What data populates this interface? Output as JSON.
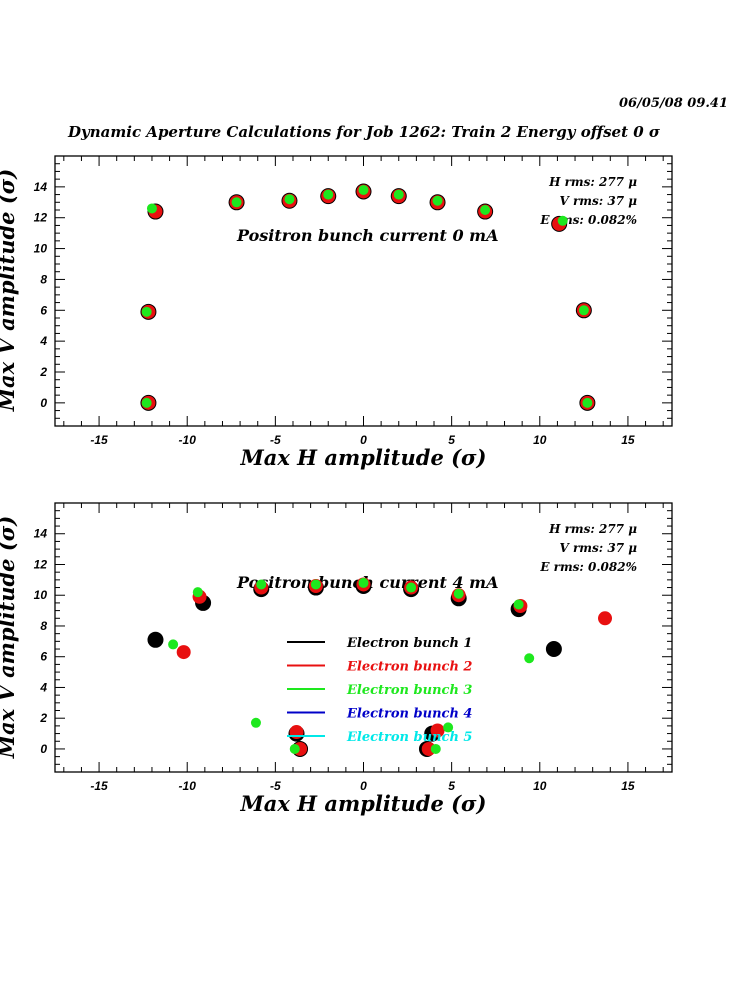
{
  "header": {
    "datetime": "06/05/08   09.41",
    "title": "Dynamic Aperture Calculations for Job 1262:  Train 2   Energy offset  0 σ"
  },
  "colors": {
    "black": "#000000",
    "red": "#e81010",
    "green": "#1ee81e",
    "blue": "#0000c8",
    "cyan": "#00e8e8"
  },
  "chart_data": [
    {
      "type": "scatter",
      "xlabel": "Max H amplitude (σ)",
      "ylabel": "Max V amplitude (σ)",
      "xlim": [
        -17.5,
        17.5
      ],
      "ylim": [
        -1.5,
        16
      ],
      "xticks": [
        -15,
        -10,
        -5,
        0,
        5,
        10,
        15
      ],
      "yticks": [
        0,
        2,
        4,
        6,
        8,
        10,
        12,
        14
      ],
      "annotation": "Positron bunch current  0 mA",
      "rms": {
        "h": "H rms: 277 μ",
        "v": "V rms: 37 μ",
        "e": "E rms: 0.082%"
      },
      "series": [
        {
          "color": "black",
          "radius": 8,
          "points": [
            [
              -12.2,
              0
            ],
            [
              -12.2,
              5.9
            ],
            [
              -11.8,
              12.4
            ],
            [
              -7.2,
              13.0
            ],
            [
              -4.2,
              13.1
            ],
            [
              -2.0,
              13.4
            ],
            [
              0,
              13.7
            ],
            [
              2.0,
              13.4
            ],
            [
              4.2,
              13.0
            ],
            [
              6.9,
              12.4
            ],
            [
              11.1,
              11.6
            ],
            [
              12.5,
              6.0
            ],
            [
              12.7,
              0
            ]
          ]
        },
        {
          "color": "red",
          "radius": 7,
          "points": [
            [
              -12.2,
              0
            ],
            [
              -12.2,
              5.9
            ],
            [
              -11.8,
              12.4
            ],
            [
              -7.2,
              13.0
            ],
            [
              -4.2,
              13.1
            ],
            [
              -2.0,
              13.4
            ],
            [
              0,
              13.7
            ],
            [
              2.0,
              13.4
            ],
            [
              4.2,
              13.0
            ],
            [
              6.9,
              12.4
            ],
            [
              11.1,
              11.6
            ],
            [
              12.5,
              6.0
            ],
            [
              12.7,
              0
            ]
          ]
        },
        {
          "color": "green",
          "radius": 5,
          "points": [
            [
              -12.3,
              0
            ],
            [
              -12.3,
              5.9
            ],
            [
              -12.0,
              12.6
            ],
            [
              -7.2,
              13.0
            ],
            [
              -4.2,
              13.2
            ],
            [
              -2.0,
              13.5
            ],
            [
              0,
              13.8
            ],
            [
              2.0,
              13.5
            ],
            [
              4.2,
              13.1
            ],
            [
              6.9,
              12.5
            ],
            [
              11.3,
              11.8
            ],
            [
              12.5,
              6.0
            ],
            [
              12.7,
              0
            ]
          ]
        }
      ]
    },
    {
      "type": "scatter",
      "xlabel": "Max H amplitude (σ)",
      "ylabel": "Max V amplitude (σ)",
      "xlim": [
        -17.5,
        17.5
      ],
      "ylim": [
        -1.5,
        16
      ],
      "xticks": [
        -15,
        -10,
        -5,
        0,
        5,
        10,
        15
      ],
      "yticks": [
        0,
        2,
        4,
        6,
        8,
        10,
        12,
        14
      ],
      "annotation": "Positron bunch current  4 mA",
      "rms": {
        "h": "H rms: 277 μ",
        "v": "V rms: 37 μ",
        "e": "E rms: 0.082%"
      },
      "legend": [
        {
          "label": "Electron bunch 1",
          "color": "black"
        },
        {
          "label": "Electron bunch 2",
          "color": "red"
        },
        {
          "label": "Electron bunch 3",
          "color": "green"
        },
        {
          "label": "Electron bunch 4",
          "color": "blue"
        },
        {
          "label": "Electron bunch 5",
          "color": "cyan"
        }
      ],
      "series": [
        {
          "name": "Electron bunch 1",
          "color": "black",
          "radius": 8,
          "points": [
            [
              -11.8,
              7.1
            ],
            [
              -9.1,
              9.5
            ],
            [
              -5.8,
              10.4
            ],
            [
              -2.7,
              10.5
            ],
            [
              0,
              10.6
            ],
            [
              2.7,
              10.4
            ],
            [
              5.4,
              9.8
            ],
            [
              8.8,
              9.1
            ],
            [
              10.8,
              6.5
            ],
            [
              -3.6,
              0
            ],
            [
              -3.8,
              1.0
            ],
            [
              3.6,
              0
            ],
            [
              3.9,
              1.0
            ]
          ]
        },
        {
          "name": "Electron bunch 2",
          "color": "red",
          "radius": 7,
          "points": [
            [
              -10.2,
              6.3
            ],
            [
              -9.3,
              9.9
            ],
            [
              -5.8,
              10.5
            ],
            [
              -2.7,
              10.6
            ],
            [
              0,
              10.7
            ],
            [
              2.7,
              10.5
            ],
            [
              5.4,
              10.0
            ],
            [
              8.9,
              9.3
            ],
            [
              13.7,
              8.5
            ],
            [
              -3.6,
              0
            ],
            [
              -3.8,
              1.1
            ],
            [
              3.7,
              0
            ],
            [
              4.2,
              1.2
            ]
          ]
        },
        {
          "name": "Electron bunch 3",
          "color": "green",
          "radius": 5,
          "points": [
            [
              -10.8,
              6.8
            ],
            [
              -9.4,
              10.2
            ],
            [
              -5.8,
              10.7
            ],
            [
              -2.7,
              10.7
            ],
            [
              0,
              10.8
            ],
            [
              2.7,
              10.5
            ],
            [
              5.4,
              10.1
            ],
            [
              8.8,
              9.4
            ],
            [
              9.4,
              5.9
            ],
            [
              -6.1,
              1.7
            ],
            [
              -3.9,
              0
            ],
            [
              4.1,
              0
            ],
            [
              4.8,
              1.4
            ]
          ]
        }
      ]
    }
  ]
}
